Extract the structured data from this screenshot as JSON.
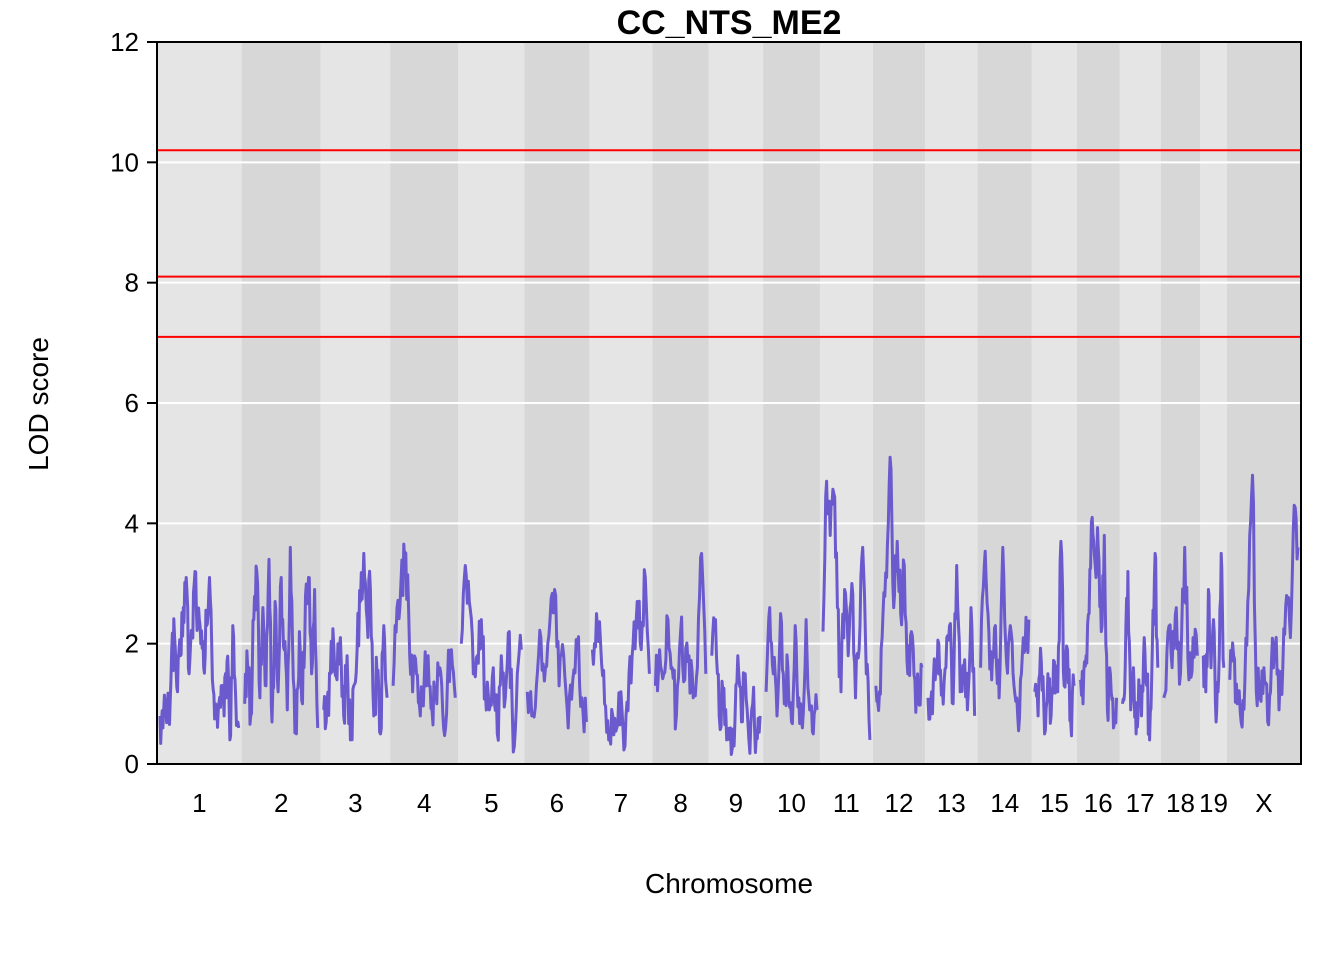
{
  "chart_data": {
    "type": "line",
    "title": "CC_NTS_ME2",
    "xlabel": "Chromosome",
    "ylabel": "LOD score",
    "ylim": [
      0,
      12
    ],
    "yticks": [
      0,
      2,
      4,
      6,
      8,
      10,
      12
    ],
    "grid": true,
    "background_bands": [
      "#e5e5e5",
      "#d7d7d7"
    ],
    "line_color": "#6a5acd",
    "threshold_color": "#ff0000",
    "thresholds": [
      7.1,
      8.1,
      10.2
    ],
    "chromosomes": [
      {
        "name": "1",
        "length": 195
      },
      {
        "name": "2",
        "length": 182
      },
      {
        "name": "3",
        "length": 160
      },
      {
        "name": "4",
        "length": 157
      },
      {
        "name": "5",
        "length": 152
      },
      {
        "name": "6",
        "length": 150
      },
      {
        "name": "7",
        "length": 145
      },
      {
        "name": "8",
        "length": 130
      },
      {
        "name": "9",
        "length": 125
      },
      {
        "name": "10",
        "length": 131
      },
      {
        "name": "11",
        "length": 122
      },
      {
        "name": "12",
        "length": 120
      },
      {
        "name": "13",
        "length": 121
      },
      {
        "name": "14",
        "length": 125
      },
      {
        "name": "15",
        "length": 104
      },
      {
        "name": "16",
        "length": 98
      },
      {
        "name": "17",
        "length": 95
      },
      {
        "name": "18",
        "length": 91
      },
      {
        "name": "19",
        "length": 61
      },
      {
        "name": "X",
        "length": 171
      }
    ],
    "series": [
      {
        "values": [
          [
            0.8,
            0.6,
            1.0,
            0.7,
            1.9,
            2.1,
            1.2,
            1.8,
            2.6,
            3.1,
            1.5,
            2.2,
            3.2,
            2.4,
            2.0,
            1.6,
            2.3,
            3.1,
            1.4,
            1.0,
            0.9,
            1.3,
            0.8,
            1.7,
            0.4,
            2.3,
            1.1,
            0.6
          ],
          [
            1.0,
            1.6,
            0.8,
            2.4,
            3.2,
            1.1,
            2.6,
            1.3,
            3.4,
            0.7,
            2.7,
            1.2,
            3.1,
            1.9,
            0.9,
            3.6,
            1.4,
            0.5,
            2.2,
            1.0,
            2.8,
            3.1,
            1.5,
            2.9,
            0.6
          ],
          [
            0.9,
            1.0,
            1.5,
            2.0,
            1.4,
            2.1,
            0.8,
            1.8,
            0.4,
            1.3,
            1.9,
            2.7,
            3.5,
            2.4,
            2.9,
            0.8,
            1.5,
            0.5,
            2.3,
            1.1
          ],
          [
            1.3,
            2.6,
            3.0,
            3.4,
            2.5,
            1.2,
            1.5,
            0.8,
            1.4,
            1.8,
            0.9,
            1.2,
            1.6,
            0.6,
            1.4,
            1.9,
            1.1
          ],
          [
            2.0,
            3.3,
            2.7,
            1.5,
            1.8,
            2.4,
            1.2,
            0.9,
            1.6,
            0.5,
            1.8,
            1.1,
            2.2,
            0.2,
            1.5,
            1.9
          ],
          [
            1.2,
            0.8,
            1.3,
            2.1,
            1.6,
            2.4,
            2.9,
            1.3,
            1.8,
            0.6,
            1.4,
            2.0,
            1.1,
            0.7
          ],
          [
            1.9,
            2.5,
            2.0,
            1.0,
            0.4,
            0.8,
            0.6,
            1.2,
            0.3,
            1.5,
            2.0,
            2.7,
            1.9,
            3.1,
            1.5
          ],
          [
            1.3,
            1.9,
            1.5,
            2.4,
            1.6,
            0.8,
            2.2,
            1.4,
            1.8,
            1.1,
            1.6,
            3.5,
            1.5
          ],
          [
            1.8,
            2.4,
            0.8,
            1.2,
            0.4,
            0.6,
            0.3,
            1.8,
            0.7,
            1.5,
            0.4,
            1.0,
            0.5,
            0.8
          ],
          [
            1.2,
            2.6,
            1.5,
            0.8,
            2.5,
            1.0,
            1.6,
            0.7,
            2.3,
            1.1,
            0.6,
            2.4,
            0.9,
            0.5,
            0.9
          ],
          [
            2.2,
            4.7,
            3.8,
            4.5,
            2.6,
            1.2,
            2.9,
            1.8,
            3.0,
            1.1,
            1.9,
            3.6,
            1.5,
            0.4
          ],
          [
            1.3,
            1.2,
            2.5,
            3.1,
            5.1,
            2.6,
            3.7,
            2.5,
            3.3,
            1.5,
            2.2,
            1.4,
            1.0,
            1.6
          ],
          [
            1.1,
            1.2,
            1.4,
            2.0,
            1.3,
            1.6,
            2.3,
            1.0,
            3.3,
            1.2,
            1.6,
            0.9,
            2.6,
            0.8
          ],
          [
            1.6,
            3.3,
            2.5,
            1.4,
            2.3,
            1.1,
            3.6,
            1.7,
            2.3,
            1.3,
            0.8,
            1.5,
            1.9,
            2.4
          ],
          [
            1.2,
            0.8,
            1.7,
            0.5,
            1.5,
            0.8,
            1.7,
            1.2,
            3.7,
            1.3,
            1.9,
            0.7,
            1.3
          ],
          [
            1.4,
            1.0,
            1.8,
            2.5,
            4.1,
            3.3,
            3.6,
            2.2,
            3.8,
            0.9,
            1.5,
            0.6,
            1.1
          ],
          [
            1.0,
            1.6,
            3.2,
            0.9,
            1.6,
            0.5,
            1.4,
            0.8,
            2.1,
            1.3,
            0.4,
            1.9,
            3.5,
            1.6
          ],
          [
            1.1,
            2.2,
            1.6,
            2.6,
            1.5,
            3.6,
            1.4,
            2.1,
            1.8
          ],
          [
            1.8,
            1.2,
            2.9,
            1.6,
            2.4,
            0.7,
            1.4,
            3.5,
            1.6
          ],
          [
            1.4,
            1.8,
            1.0,
            0.7,
            1.4,
            2.9,
            4.8,
            1.2,
            1.1,
            1.6,
            0.7,
            1.7,
            2.0,
            0.9,
            1.6,
            2.8,
            2.1,
            4.3,
            3.6
          ]
        ]
      }
    ]
  }
}
